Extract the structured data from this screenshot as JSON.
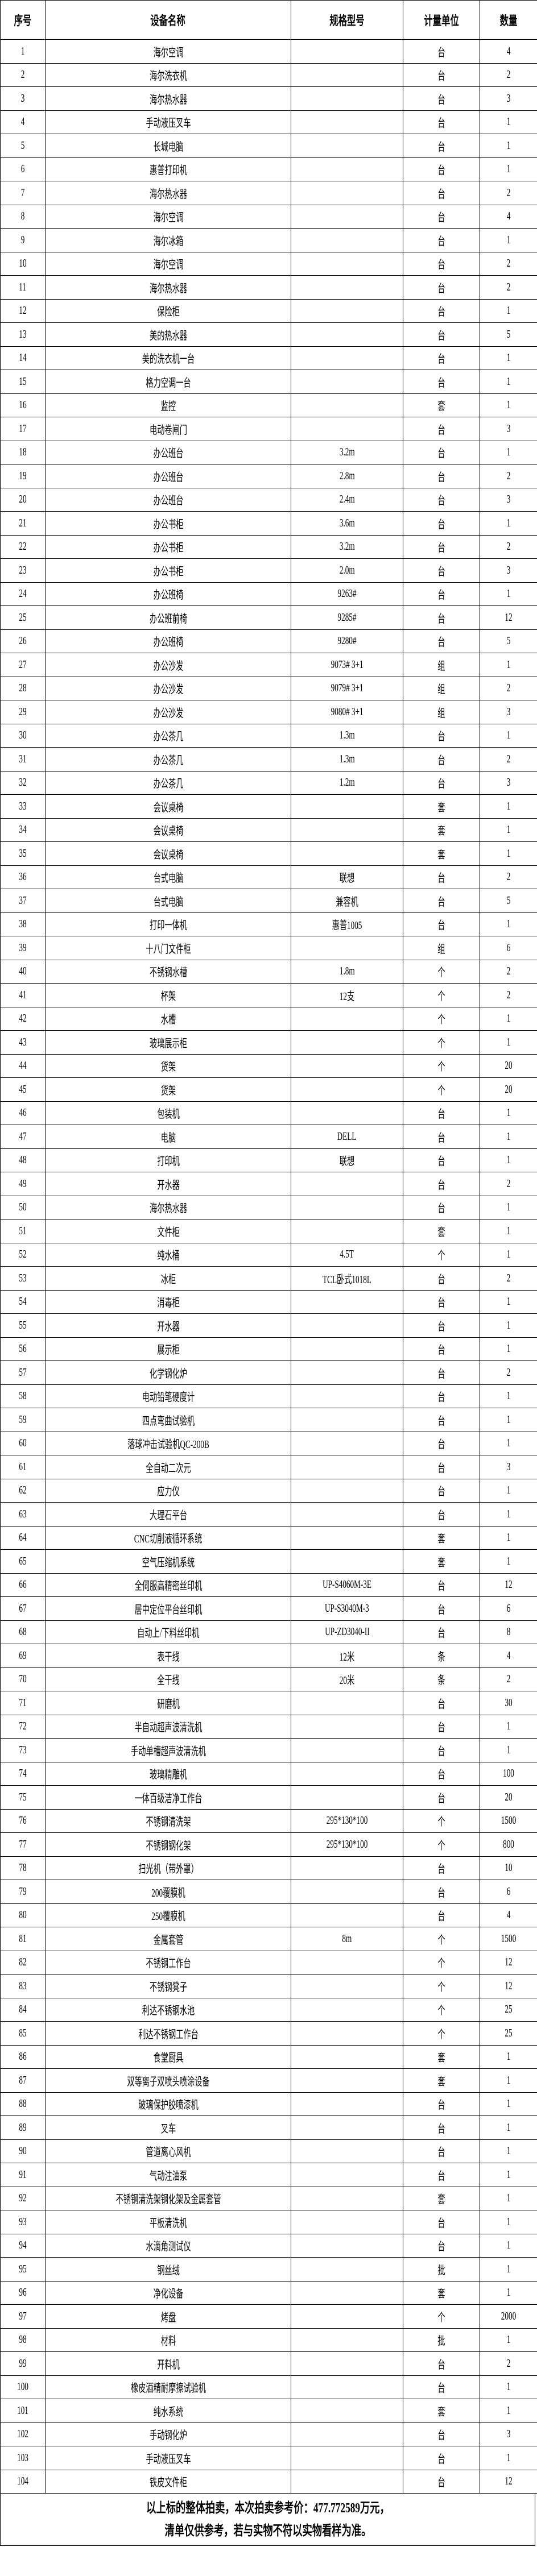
{
  "headers": {
    "no": "序号",
    "name": "设备名称",
    "spec": "规格型号",
    "unit": "计量单位",
    "qty": "数量"
  },
  "rows": [
    [
      "1",
      "海尔空调",
      "",
      "台",
      "4"
    ],
    [
      "2",
      "海尔洗衣机",
      "",
      "台",
      "2"
    ],
    [
      "3",
      "海尔热水器",
      "",
      "台",
      "3"
    ],
    [
      "4",
      "手动液压叉车",
      "",
      "台",
      "1"
    ],
    [
      "5",
      "长城电脑",
      "",
      "台",
      "1"
    ],
    [
      "6",
      "惠普打印机",
      "",
      "台",
      "1"
    ],
    [
      "7",
      "海尔热水器",
      "",
      "台",
      "2"
    ],
    [
      "8",
      "海尔空调",
      "",
      "台",
      "4"
    ],
    [
      "9",
      "海尔冰箱",
      "",
      "台",
      "1"
    ],
    [
      "10",
      "海尔空调",
      "",
      "台",
      "2"
    ],
    [
      "11",
      "海尔热水器",
      "",
      "台",
      "2"
    ],
    [
      "12",
      "保险柜",
      "",
      "台",
      "1"
    ],
    [
      "13",
      "美的热水器",
      "",
      "台",
      "5"
    ],
    [
      "14",
      "美的洗衣机一台",
      "",
      "台",
      "1"
    ],
    [
      "15",
      "格力空调一台",
      "",
      "台",
      "1"
    ],
    [
      "16",
      "监控",
      "",
      "套",
      "1"
    ],
    [
      "17",
      "电动卷闸门",
      "",
      "台",
      "3"
    ],
    [
      "18",
      "办公班台",
      "3.2m",
      "台",
      "1"
    ],
    [
      "19",
      "办公班台",
      "2.8m",
      "台",
      "2"
    ],
    [
      "20",
      "办公班台",
      "2.4m",
      "台",
      "3"
    ],
    [
      "21",
      "办公书柜",
      "3.6m",
      "台",
      "1"
    ],
    [
      "22",
      "办公书柜",
      "3.2m",
      "台",
      "2"
    ],
    [
      "23",
      "办公书柜",
      "2.0m",
      "台",
      "3"
    ],
    [
      "24",
      "办公班椅",
      "9263#",
      "台",
      "1"
    ],
    [
      "25",
      "办公班前椅",
      "9285#",
      "台",
      "12"
    ],
    [
      "26",
      "办公班椅",
      "9280#",
      "台",
      "5"
    ],
    [
      "27",
      "办公沙发",
      "9073# 3+1",
      "组",
      "1"
    ],
    [
      "28",
      "办公沙发",
      "9079# 3+1",
      "组",
      "2"
    ],
    [
      "29",
      "办公沙发",
      "9080# 3+1",
      "组",
      "3"
    ],
    [
      "30",
      "办公茶几",
      "1.3m",
      "台",
      "1"
    ],
    [
      "31",
      "办公茶几",
      "1.3m",
      "台",
      "2"
    ],
    [
      "32",
      "办公茶几",
      "1.2m",
      "台",
      "3"
    ],
    [
      "33",
      "会议桌椅",
      "",
      "套",
      "1"
    ],
    [
      "34",
      "会议桌椅",
      "",
      "套",
      "1"
    ],
    [
      "35",
      "会议桌椅",
      "",
      "套",
      "1"
    ],
    [
      "36",
      "台式电脑",
      "联想",
      "台",
      "2"
    ],
    [
      "37",
      "台式电脑",
      "兼容机",
      "台",
      "5"
    ],
    [
      "38",
      "打印一体机",
      "惠普1005",
      "台",
      "1"
    ],
    [
      "39",
      "十八门文件柜",
      "",
      "组",
      "6"
    ],
    [
      "40",
      "不锈钢水槽",
      "1.8m",
      "个",
      "2"
    ],
    [
      "41",
      "杯架",
      "12支",
      "个",
      "2"
    ],
    [
      "42",
      "水槽",
      "",
      "个",
      "1"
    ],
    [
      "43",
      "玻璃展示柜",
      "",
      "个",
      "1"
    ],
    [
      "44",
      "货架",
      "",
      "个",
      "20"
    ],
    [
      "45",
      "货架",
      "",
      "个",
      "20"
    ],
    [
      "46",
      "包装机",
      "",
      "台",
      "1"
    ],
    [
      "47",
      "电脑",
      "DELL",
      "台",
      "1"
    ],
    [
      "48",
      "打印机",
      "联想",
      "台",
      "1"
    ],
    [
      "49",
      "开水器",
      "",
      "台",
      "2"
    ],
    [
      "50",
      "海尔热水器",
      "",
      "台",
      "1"
    ],
    [
      "51",
      "文件柜",
      "",
      "套",
      "1"
    ],
    [
      "52",
      "纯水桶",
      "4.5T",
      "个",
      "1"
    ],
    [
      "53",
      "冰柜",
      "TCL卧式1018L",
      "台",
      "2"
    ],
    [
      "54",
      "消毒柜",
      "",
      "台",
      "1"
    ],
    [
      "55",
      "开水器",
      "",
      "台",
      "1"
    ],
    [
      "56",
      "展示柜",
      "",
      "台",
      "1"
    ],
    [
      "57",
      "化学钢化炉",
      "",
      "台",
      "2"
    ],
    [
      "58",
      "电动铅笔硬度计",
      "",
      "台",
      "1"
    ],
    [
      "59",
      "四点弯曲试验机",
      "",
      "台",
      "1"
    ],
    [
      "60",
      "落球冲击试验机QC-200B",
      "",
      "台",
      "1"
    ],
    [
      "61",
      "全自动二次元",
      "",
      "台",
      "3"
    ],
    [
      "62",
      "应力仪",
      "",
      "台",
      "1"
    ],
    [
      "63",
      "大理石平台",
      "",
      "台",
      "1"
    ],
    [
      "64",
      "CNC切削液循环系统",
      "",
      "套",
      "1"
    ],
    [
      "65",
      "空气压缩机系统",
      "",
      "套",
      "1"
    ],
    [
      "66",
      "全伺服高精密丝印机",
      "UP-S4060M-3E",
      "台",
      "12"
    ],
    [
      "67",
      "居中定位平台丝印机",
      "UP-S3040M-3",
      "台",
      "6"
    ],
    [
      "68",
      "自动上/下料丝印机",
      "UP-ZD3040-II",
      "台",
      "8"
    ],
    [
      "69",
      "表干线",
      "12米",
      "条",
      "4"
    ],
    [
      "70",
      "全干线",
      "20米",
      "条",
      "2"
    ],
    [
      "71",
      "研磨机",
      "",
      "台",
      "30"
    ],
    [
      "72",
      "半自动超声波清洗机",
      "",
      "台",
      "1"
    ],
    [
      "73",
      "手动单槽超声波清洗机",
      "",
      "台",
      "1"
    ],
    [
      "74",
      "玻璃精雕机",
      "",
      "台",
      "100"
    ],
    [
      "75",
      "一体百级洁净工作台",
      "",
      "台",
      "20"
    ],
    [
      "76",
      "不锈钢清洗架",
      "295*130*100",
      "个",
      "1500"
    ],
    [
      "77",
      "不锈钢钢化架",
      "295*130*100",
      "个",
      "800"
    ],
    [
      "78",
      "扫光机（带外罩）",
      "",
      "台",
      "10"
    ],
    [
      "79",
      "200覆膜机",
      "",
      "台",
      "6"
    ],
    [
      "80",
      "250覆膜机",
      "",
      "台",
      "4"
    ],
    [
      "81",
      "金属套管",
      "8m",
      "个",
      "1500"
    ],
    [
      "82",
      "不锈钢工作台",
      "",
      "个",
      "12"
    ],
    [
      "83",
      "不锈钢凳子",
      "",
      "个",
      "12"
    ],
    [
      "84",
      "利达不锈钢水池",
      "",
      "个",
      "25"
    ],
    [
      "85",
      "利达不锈钢工作台",
      "",
      "个",
      "25"
    ],
    [
      "86",
      "食堂厨具",
      "",
      "套",
      "1"
    ],
    [
      "87",
      "双等离子双喷头喷涂设备",
      "",
      "套",
      "1"
    ],
    [
      "88",
      "玻璃保护胶喷漆机",
      "",
      "台",
      "1"
    ],
    [
      "89",
      "叉车",
      "",
      "台",
      "1"
    ],
    [
      "90",
      "管道离心风机",
      "",
      "台",
      "1"
    ],
    [
      "91",
      "气动注油泵",
      "",
      "台",
      "1"
    ],
    [
      "92",
      "不锈钢清洗架钢化架及金属套管",
      "",
      "套",
      "1"
    ],
    [
      "93",
      "平板清洗机",
      "",
      "台",
      "1"
    ],
    [
      "94",
      "水滴角测试仪",
      "",
      "台",
      "1"
    ],
    [
      "95",
      "钢丝绒",
      "",
      "批",
      "1"
    ],
    [
      "96",
      "净化设备",
      "",
      "套",
      "1"
    ],
    [
      "97",
      "烤盘",
      "",
      "个",
      "2000"
    ],
    [
      "98",
      "材料",
      "",
      "批",
      "1"
    ],
    [
      "99",
      "开料机",
      "",
      "台",
      "2"
    ],
    [
      "100",
      "橡皮酒精耐摩擦试验机",
      "",
      "台",
      "1"
    ],
    [
      "101",
      "纯水系统",
      "",
      "套",
      "1"
    ],
    [
      "102",
      "手动钢化炉",
      "",
      "台",
      "3"
    ],
    [
      "103",
      "手动液压叉车",
      "",
      "台",
      "1"
    ],
    [
      "104",
      "铁皮文件柜",
      "",
      "台",
      "12"
    ]
  ],
  "footer": {
    "line1": "以上标的整体拍卖，本次拍卖参考价：477.772589万元，",
    "line2": "清单仅供参考，若与实物不符以实物看样为准。"
  }
}
